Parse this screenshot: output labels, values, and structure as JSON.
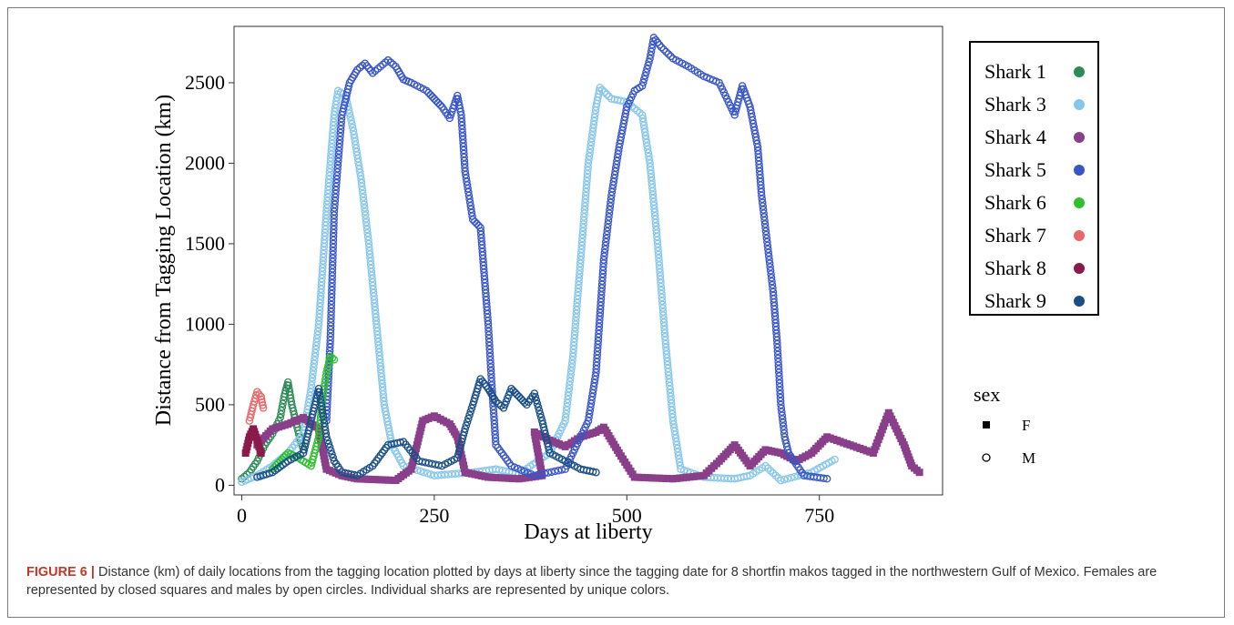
{
  "caption": {
    "label": "FIGURE 6 |",
    "text": "Distance (km) of daily locations from the tagging location plotted by days at liberty since the tagging date for 8 shortfin makos tagged in the northwestern Gulf of Mexico. Females are represented by closed squares and males by open circles. Individual sharks are represented by unique colors."
  },
  "chart_data": {
    "type": "scatter",
    "xlabel": "Days at liberty",
    "ylabel": "Distance from Tagging Location (km)",
    "xlim": [
      -10,
      910
    ],
    "ylim": [
      -60,
      2850
    ],
    "x_ticks": [
      0,
      250,
      500,
      750
    ],
    "y_ticks": [
      0,
      500,
      1000,
      1500,
      2000,
      2500
    ],
    "grid": false,
    "legend_placement": "right",
    "sex_legend": {
      "title": "sex",
      "items": [
        {
          "label": "F",
          "marker": "filled-square"
        },
        {
          "label": "M",
          "marker": "open-circle"
        }
      ]
    },
    "series": [
      {
        "name": "Shark 1",
        "color": "#2e8b57",
        "sex": "M",
        "points": [
          [
            0,
            40
          ],
          [
            10,
            80
          ],
          [
            20,
            150
          ],
          [
            30,
            250
          ],
          [
            40,
            320
          ],
          [
            50,
            420
          ],
          [
            55,
            550
          ],
          [
            60,
            640
          ],
          [
            65,
            500
          ],
          [
            70,
            400
          ],
          [
            75,
            300
          ],
          [
            80,
            220
          ]
        ]
      },
      {
        "name": "Shark 3",
        "color": "#87c6ec",
        "sex": "M",
        "points": [
          [
            0,
            20
          ],
          [
            20,
            60
          ],
          [
            40,
            120
          ],
          [
            60,
            200
          ],
          [
            80,
            320
          ],
          [
            90,
            600
          ],
          [
            100,
            1000
          ],
          [
            110,
            1700
          ],
          [
            120,
            2300
          ],
          [
            125,
            2450
          ],
          [
            135,
            2420
          ],
          [
            145,
            2200
          ],
          [
            155,
            1900
          ],
          [
            165,
            1500
          ],
          [
            175,
            1000
          ],
          [
            185,
            500
          ],
          [
            195,
            250
          ],
          [
            210,
            120
          ],
          [
            250,
            60
          ],
          [
            300,
            80
          ],
          [
            330,
            100
          ],
          [
            360,
            70
          ],
          [
            400,
            200
          ],
          [
            420,
            400
          ],
          [
            430,
            800
          ],
          [
            440,
            1400
          ],
          [
            450,
            2000
          ],
          [
            460,
            2350
          ],
          [
            465,
            2470
          ],
          [
            480,
            2400
          ],
          [
            500,
            2380
          ],
          [
            520,
            2300
          ],
          [
            530,
            2000
          ],
          [
            540,
            1500
          ],
          [
            550,
            900
          ],
          [
            560,
            400
          ],
          [
            570,
            100
          ],
          [
            600,
            50
          ],
          [
            640,
            40
          ],
          [
            660,
            60
          ],
          [
            680,
            120
          ],
          [
            700,
            30
          ],
          [
            740,
            80
          ],
          [
            770,
            160
          ]
        ]
      },
      {
        "name": "Shark 4",
        "color": "#8a3f8a",
        "sex": "F",
        "points": [
          [
            20,
            250
          ],
          [
            40,
            350
          ],
          [
            60,
            380
          ],
          [
            80,
            420
          ],
          [
            100,
            350
          ],
          [
            110,
            100
          ],
          [
            130,
            60
          ],
          [
            150,
            40
          ],
          [
            200,
            30
          ],
          [
            220,
            100
          ],
          [
            235,
            400
          ],
          [
            250,
            430
          ],
          [
            270,
            380
          ],
          [
            280,
            300
          ],
          [
            290,
            80
          ],
          [
            320,
            50
          ],
          [
            360,
            40
          ],
          [
            390,
            60
          ],
          [
            380,
            330
          ],
          [
            400,
            280
          ],
          [
            420,
            240
          ],
          [
            440,
            300
          ],
          [
            460,
            330
          ],
          [
            470,
            360
          ],
          [
            490,
            200
          ],
          [
            510,
            50
          ],
          [
            560,
            40
          ],
          [
            600,
            60
          ],
          [
            620,
            150
          ],
          [
            640,
            250
          ],
          [
            660,
            120
          ],
          [
            680,
            220
          ],
          [
            700,
            200
          ],
          [
            720,
            150
          ],
          [
            740,
            200
          ],
          [
            760,
            300
          ],
          [
            790,
            250
          ],
          [
            820,
            200
          ],
          [
            840,
            450
          ],
          [
            860,
            250
          ],
          [
            870,
            120
          ],
          [
            880,
            80
          ]
        ]
      },
      {
        "name": "Shark 5",
        "color": "#3956c6",
        "sex": "M",
        "points": [
          [
            110,
            400
          ],
          [
            115,
            900
          ],
          [
            120,
            1700
          ],
          [
            130,
            2300
          ],
          [
            140,
            2500
          ],
          [
            150,
            2580
          ],
          [
            160,
            2620
          ],
          [
            170,
            2560
          ],
          [
            180,
            2600
          ],
          [
            190,
            2640
          ],
          [
            200,
            2600
          ],
          [
            210,
            2520
          ],
          [
            220,
            2500
          ],
          [
            240,
            2450
          ],
          [
            250,
            2400
          ],
          [
            260,
            2350
          ],
          [
            270,
            2280
          ],
          [
            280,
            2420
          ],
          [
            285,
            2300
          ],
          [
            290,
            1950
          ],
          [
            300,
            1650
          ],
          [
            310,
            1600
          ],
          [
            315,
            1300
          ],
          [
            320,
            1000
          ],
          [
            325,
            600
          ],
          [
            330,
            250
          ],
          [
            350,
            120
          ],
          [
            380,
            60
          ],
          [
            420,
            100
          ],
          [
            440,
            300
          ],
          [
            450,
            400
          ],
          [
            460,
            700
          ],
          [
            470,
            1400
          ],
          [
            480,
            1800
          ],
          [
            490,
            2100
          ],
          [
            500,
            2350
          ],
          [
            510,
            2450
          ],
          [
            520,
            2480
          ],
          [
            530,
            2650
          ],
          [
            535,
            2780
          ],
          [
            545,
            2720
          ],
          [
            560,
            2650
          ],
          [
            580,
            2600
          ],
          [
            600,
            2540
          ],
          [
            620,
            2500
          ],
          [
            640,
            2300
          ],
          [
            650,
            2480
          ],
          [
            660,
            2350
          ],
          [
            670,
            2100
          ],
          [
            675,
            1800
          ],
          [
            680,
            1600
          ],
          [
            690,
            1200
          ],
          [
            695,
            900
          ],
          [
            700,
            500
          ],
          [
            705,
            300
          ],
          [
            710,
            200
          ],
          [
            730,
            60
          ],
          [
            760,
            40
          ]
        ]
      },
      {
        "name": "Shark 6",
        "color": "#2fbf2f",
        "sex": "M",
        "points": [
          [
            40,
            100
          ],
          [
            50,
            150
          ],
          [
            60,
            200
          ],
          [
            70,
            180
          ],
          [
            80,
            150
          ],
          [
            90,
            120
          ],
          [
            100,
            300
          ],
          [
            105,
            550
          ],
          [
            110,
            700
          ],
          [
            115,
            800
          ],
          [
            120,
            780
          ]
        ]
      },
      {
        "name": "Shark 7",
        "color": "#e8686a",
        "sex": "M",
        "points": [
          [
            10,
            400
          ],
          [
            15,
            500
          ],
          [
            20,
            580
          ],
          [
            25,
            550
          ],
          [
            28,
            480
          ]
        ]
      },
      {
        "name": "Shark 8",
        "color": "#8b1a4a",
        "sex": "F",
        "points": [
          [
            5,
            200
          ],
          [
            10,
            300
          ],
          [
            15,
            350
          ],
          [
            20,
            280
          ],
          [
            25,
            200
          ]
        ]
      },
      {
        "name": "Shark 9",
        "color": "#1a4f86",
        "sex": "M",
        "points": [
          [
            20,
            50
          ],
          [
            40,
            80
          ],
          [
            60,
            150
          ],
          [
            80,
            200
          ],
          [
            90,
            400
          ],
          [
            100,
            600
          ],
          [
            110,
            300
          ],
          [
            120,
            150
          ],
          [
            130,
            80
          ],
          [
            150,
            60
          ],
          [
            170,
            120
          ],
          [
            190,
            250
          ],
          [
            210,
            270
          ],
          [
            230,
            150
          ],
          [
            260,
            120
          ],
          [
            280,
            170
          ],
          [
            290,
            350
          ],
          [
            300,
            500
          ],
          [
            310,
            660
          ],
          [
            320,
            600
          ],
          [
            330,
            520
          ],
          [
            340,
            480
          ],
          [
            350,
            600
          ],
          [
            360,
            550
          ],
          [
            370,
            500
          ],
          [
            380,
            570
          ],
          [
            390,
            400
          ],
          [
            400,
            200
          ],
          [
            420,
            150
          ],
          [
            440,
            100
          ],
          [
            460,
            80
          ]
        ]
      }
    ]
  }
}
